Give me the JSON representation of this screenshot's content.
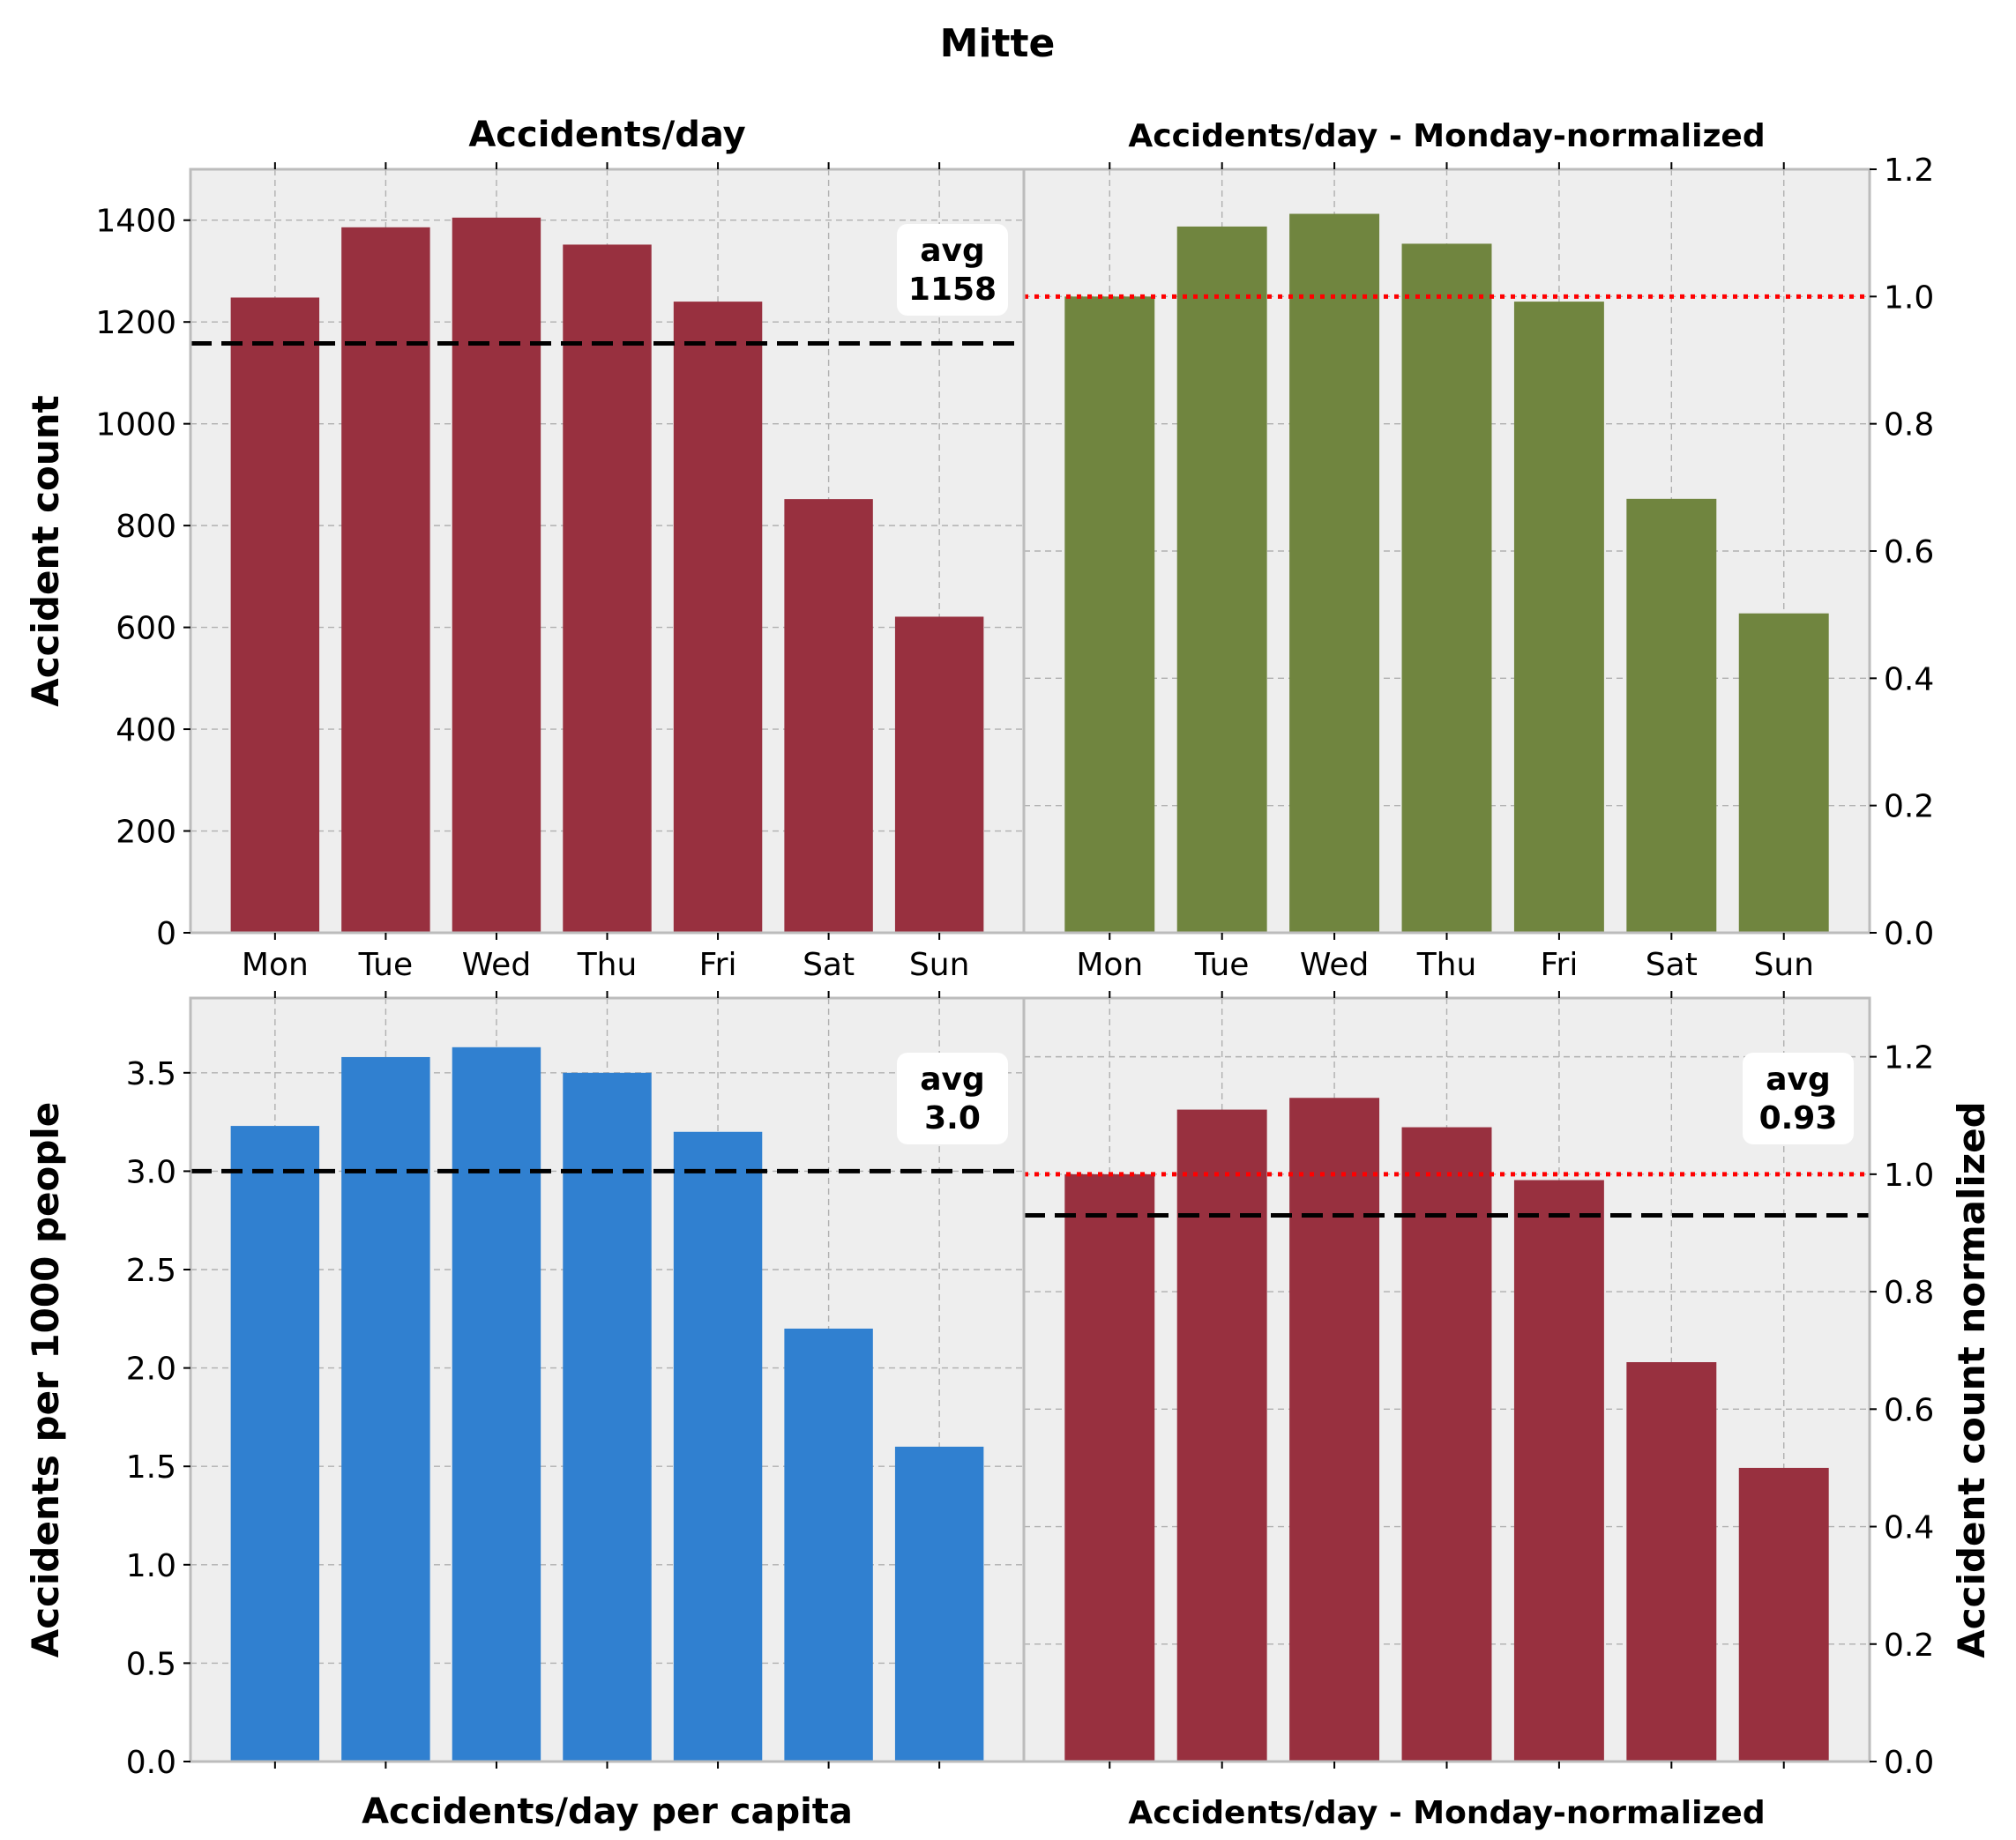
{
  "figure": {
    "suptitle": "Mitte",
    "colors": {
      "crimson": "#98303f",
      "olive": "#70853f",
      "blue": "#3080d0",
      "panel_background": "#eeeeee",
      "avg_line": "#000000",
      "reference_line": "#ff0000"
    }
  },
  "chart_data": [
    {
      "id": "top-left",
      "type": "bar",
      "title": "Accidents/day",
      "xlabel": "",
      "ylabel": "Accident count",
      "categories": [
        "Mon",
        "Tue",
        "Wed",
        "Thu",
        "Fri",
        "Sat",
        "Sun"
      ],
      "values": [
        1248,
        1386,
        1405,
        1352,
        1240,
        852,
        621
      ],
      "ylim": [
        0,
        1500
      ],
      "yticks": [
        0,
        200,
        400,
        600,
        800,
        1000,
        1200,
        1400
      ],
      "ytick_labels": [
        "0",
        "200",
        "400",
        "600",
        "800",
        "1000",
        "1200",
        "1400"
      ],
      "y_axis_side": "left",
      "show_xtick_labels": true,
      "color": "#98303f",
      "avg_line": {
        "value": 1158,
        "style": "dashed",
        "color": "#000000"
      },
      "annotation": {
        "label": "avg",
        "value": "1158"
      },
      "grid": true
    },
    {
      "id": "top-right",
      "type": "bar",
      "title": "Accidents/day - Monday-normalized",
      "xlabel": "",
      "ylabel": "",
      "categories": [
        "Mon",
        "Tue",
        "Wed",
        "Thu",
        "Fri",
        "Sat",
        "Sun"
      ],
      "values": [
        1.0,
        1.11,
        1.13,
        1.083,
        0.992,
        0.682,
        0.502
      ],
      "ylim": [
        0,
        1.2
      ],
      "yticks": [
        0,
        0.2,
        0.4,
        0.6,
        0.8,
        1.0,
        1.2
      ],
      "ytick_labels": [
        "0.0",
        "0.2",
        "0.4",
        "0.6",
        "0.8",
        "1.0",
        "1.2"
      ],
      "y_axis_side": "right",
      "show_xtick_labels": true,
      "color": "#70853f",
      "reference_line": {
        "value": 1.0,
        "style": "dotted",
        "color": "#ff0000"
      },
      "grid": true
    },
    {
      "id": "bottom-left",
      "type": "bar",
      "title": "",
      "xlabel": "Accidents/day per capita",
      "ylabel": "Accidents per 1000 people",
      "categories": [
        "Mon",
        "Tue",
        "Wed",
        "Thu",
        "Fri",
        "Sat",
        "Sun"
      ],
      "values": [
        3.23,
        3.58,
        3.63,
        3.5,
        3.2,
        2.2,
        1.6
      ],
      "ylim": [
        0,
        3.88
      ],
      "yticks": [
        0,
        0.5,
        1.0,
        1.5,
        2.0,
        2.5,
        3.0,
        3.5
      ],
      "ytick_labels": [
        "0.0",
        "0.5",
        "1.0",
        "1.5",
        "2.0",
        "2.5",
        "3.0",
        "3.5"
      ],
      "y_axis_side": "left",
      "show_xtick_labels": false,
      "color": "#3080d0",
      "avg_line": {
        "value": 3.0,
        "style": "dashed",
        "color": "#000000"
      },
      "annotation": {
        "label": "avg",
        "value": "3.0"
      },
      "grid": true
    },
    {
      "id": "bottom-right",
      "type": "bar",
      "title": "",
      "xlabel": "Accidents/day - Monday-normalized",
      "ylabel": "Accident count normalized",
      "categories": [
        "Mon",
        "Tue",
        "Wed",
        "Thu",
        "Fri",
        "Sat",
        "Sun"
      ],
      "values": [
        1.0,
        1.11,
        1.13,
        1.08,
        0.99,
        0.68,
        0.5
      ],
      "ylim": [
        0,
        1.3
      ],
      "yticks": [
        0,
        0.2,
        0.4,
        0.6,
        0.8,
        1.0,
        1.2
      ],
      "ytick_labels": [
        "0.0",
        "0.2",
        "0.4",
        "0.6",
        "0.8",
        "1.0",
        "1.2"
      ],
      "y_axis_side": "right",
      "show_xtick_labels": false,
      "color": "#98303f",
      "avg_line": {
        "value": 0.93,
        "style": "dashed",
        "color": "#000000"
      },
      "reference_line": {
        "value": 1.0,
        "style": "dotted",
        "color": "#ff0000"
      },
      "annotation": {
        "label": "avg",
        "value": "0.93"
      },
      "grid": true
    }
  ]
}
